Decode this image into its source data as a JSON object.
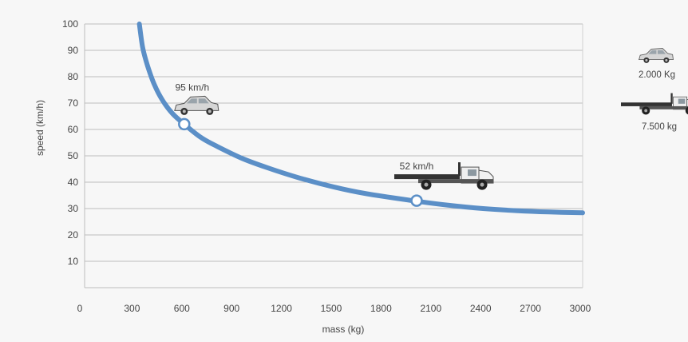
{
  "chart_data": {
    "type": "line",
    "xlabel": "mass (kg)",
    "ylabel": "speed (km/h)",
    "xlim": [
      0,
      3000
    ],
    "ylim": [
      0,
      100
    ],
    "x_ticks": [
      "0",
      "300",
      "600",
      "900",
      "1200",
      "1500",
      "1800",
      "2100",
      "2400",
      "2700",
      "3000"
    ],
    "y_ticks": [
      "10",
      "20",
      "30",
      "40",
      "50",
      "60",
      "70",
      "80",
      "90",
      "100"
    ],
    "grid": "horizontal",
    "series": [
      {
        "color": "#5b8fc7",
        "x": [
          330,
          350,
          380,
          420,
          470,
          530,
          600,
          700,
          800,
          950,
          1100,
          1300,
          1500,
          1700,
          2000,
          2200,
          2400,
          2600,
          2800,
          3000
        ],
        "y": [
          100,
          91,
          84,
          77,
          71,
          66,
          62,
          57,
          53.5,
          49,
          45.5,
          41.5,
          38.2,
          35.6,
          32.8,
          31.2,
          30,
          29.2,
          28.7,
          28.4
        ]
      }
    ],
    "markers": [
      {
        "x": 600,
        "y": 62,
        "label": "95 km/h",
        "vehicle": "car-icon"
      },
      {
        "x": 2000,
        "y": 33,
        "label": "52 km/h",
        "vehicle": "truck-icon"
      }
    ]
  },
  "legend": [
    {
      "icon": "car-icon",
      "label": "2.000 Kg"
    },
    {
      "icon": "truck-icon",
      "label": "7.500 kg"
    }
  ]
}
